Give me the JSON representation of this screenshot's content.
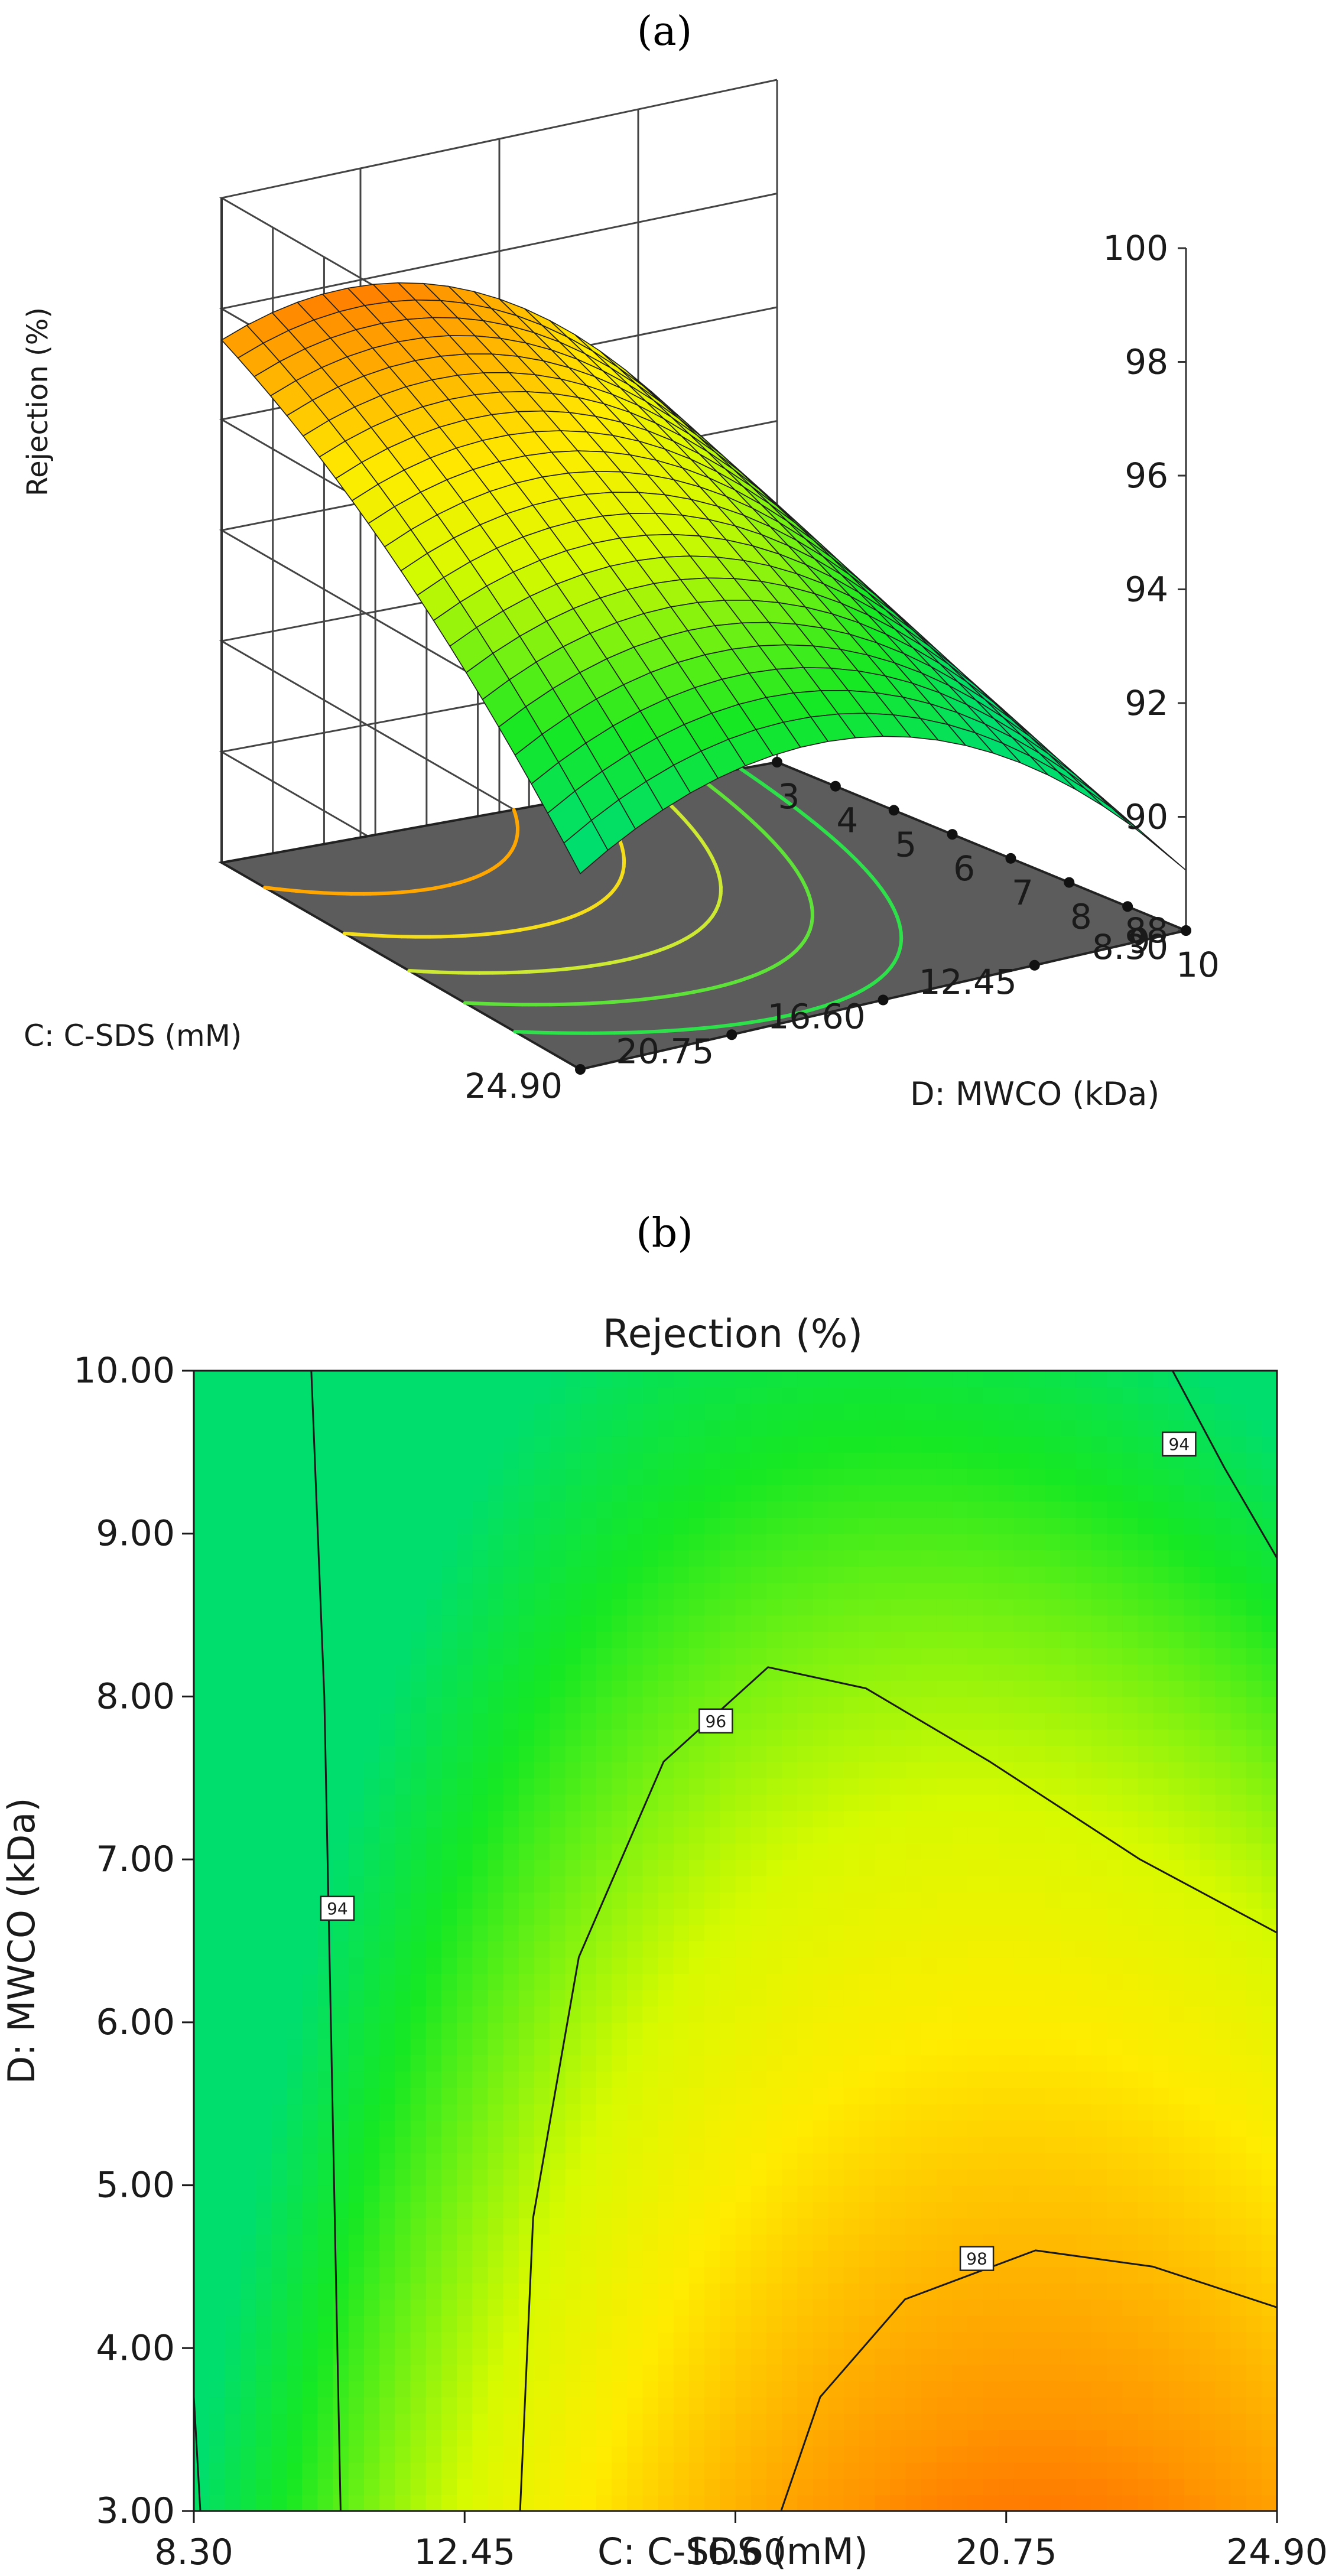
{
  "panel_a_label": "(a)",
  "panel_b_label": "(b)",
  "chart_data": [
    {
      "type": "surface",
      "panel": "(a)",
      "zlabel": "Rejection (%)",
      "xlabel": "C: C-SDS (mM)",
      "ylabel": "D: MWCO (kDa)",
      "z_ticks": [
        "88",
        "90",
        "92",
        "94",
        "96",
        "98",
        "100"
      ],
      "x_ticks": [
        "8.30",
        "12.45",
        "16.60",
        "20.75",
        "24.90"
      ],
      "y_ticks": [
        "10",
        "9",
        "8",
        "7",
        "6",
        "5",
        "4",
        "3"
      ],
      "zlim": [
        88,
        100
      ],
      "xlim": [
        8.3,
        24.9
      ],
      "ylim": [
        3,
        10
      ],
      "base_contour_levels": [
        93,
        94,
        95,
        96,
        97,
        98
      ]
    },
    {
      "type": "contour",
      "panel": "(b)",
      "title": "Rejection (%)",
      "xlabel": "C: C-SDS (mM)",
      "ylabel": "D: MWCO (kDa)",
      "x_ticks": [
        "8.30",
        "12.45",
        "16.60",
        "20.75",
        "24.90"
      ],
      "y_ticks": [
        "3.00",
        "4.00",
        "5.00",
        "6.00",
        "7.00",
        "8.00",
        "9.00",
        "10.00"
      ],
      "xlim": [
        8.3,
        24.9
      ],
      "ylim": [
        3,
        10
      ],
      "contour_labels": [
        {
          "text": "94",
          "x": 10.5,
          "y": 6.7
        },
        {
          "text": "94",
          "x": 23.4,
          "y": 9.55
        },
        {
          "text": "96",
          "x": 16.3,
          "y": 7.85
        },
        {
          "text": "98",
          "x": 20.3,
          "y": 4.55
        }
      ],
      "contours": [
        {
          "level": 94,
          "points": [
            [
              10.1,
              10.0
            ],
            [
              10.3,
              8.0
            ],
            [
              10.4,
              6.0
            ],
            [
              10.5,
              4.0
            ],
            [
              10.55,
              3.0
            ]
          ]
        },
        {
          "level": 94,
          "points": [
            [
              8.3,
              3.7
            ],
            [
              8.4,
              3.0
            ]
          ]
        },
        {
          "level": 94,
          "points": [
            [
              23.3,
              10.0
            ],
            [
              24.1,
              9.4
            ],
            [
              24.9,
              8.85
            ]
          ]
        },
        {
          "level": 96,
          "points": [
            [
              13.3,
              3.0
            ],
            [
              13.5,
              4.8
            ],
            [
              14.2,
              6.4
            ],
            [
              15.5,
              7.6
            ],
            [
              17.1,
              8.18
            ],
            [
              18.6,
              8.05
            ],
            [
              20.5,
              7.6
            ],
            [
              22.8,
              7.0
            ],
            [
              24.9,
              6.55
            ]
          ]
        },
        {
          "level": 98,
          "points": [
            [
              17.3,
              3.0
            ],
            [
              17.9,
              3.7
            ],
            [
              19.2,
              4.3
            ],
            [
              21.2,
              4.6
            ],
            [
              23.0,
              4.5
            ],
            [
              24.9,
              4.25
            ]
          ]
        }
      ]
    }
  ]
}
